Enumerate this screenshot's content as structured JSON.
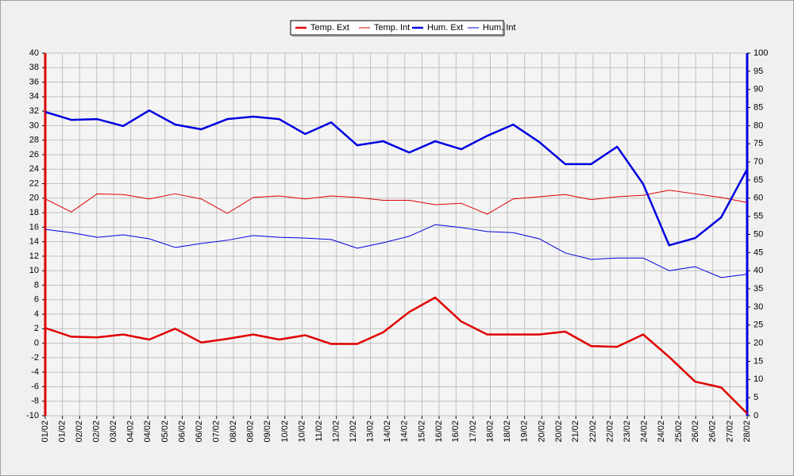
{
  "chart_data": {
    "type": "line",
    "x": [
      1,
      2,
      3,
      4,
      5,
      6,
      7,
      8,
      9,
      10,
      11,
      12,
      13,
      14,
      15,
      16,
      17,
      18,
      19,
      20,
      21,
      22,
      23,
      24,
      25,
      26,
      27,
      28
    ],
    "xlim": [
      1,
      28
    ],
    "xticks": [
      {
        "value": 1,
        "label": "01/02"
      },
      {
        "value": 1.66,
        "label": "01/02"
      },
      {
        "value": 2.32,
        "label": "02/02"
      },
      {
        "value": 2.98,
        "label": "02/02"
      },
      {
        "value": 3.63,
        "label": "03/02"
      },
      {
        "value": 4.29,
        "label": "04/02"
      },
      {
        "value": 4.95,
        "label": "04/02"
      },
      {
        "value": 5.61,
        "label": "05/02"
      },
      {
        "value": 6.27,
        "label": "06/02"
      },
      {
        "value": 6.93,
        "label": "06/02"
      },
      {
        "value": 7.59,
        "label": "07/02"
      },
      {
        "value": 8.24,
        "label": "08/02"
      },
      {
        "value": 8.9,
        "label": "08/02"
      },
      {
        "value": 9.56,
        "label": "09/02"
      },
      {
        "value": 10.22,
        "label": "10/02"
      },
      {
        "value": 10.88,
        "label": "10/02"
      },
      {
        "value": 11.54,
        "label": "11/02"
      },
      {
        "value": 12.2,
        "label": "12/02"
      },
      {
        "value": 12.85,
        "label": "12/02"
      },
      {
        "value": 13.51,
        "label": "13/02"
      },
      {
        "value": 14.17,
        "label": "14/02"
      },
      {
        "value": 14.83,
        "label": "14/02"
      },
      {
        "value": 15.49,
        "label": "15/02"
      },
      {
        "value": 16.15,
        "label": "16/02"
      },
      {
        "value": 16.8,
        "label": "16/02"
      },
      {
        "value": 17.46,
        "label": "17/02"
      },
      {
        "value": 18.12,
        "label": "18/02"
      },
      {
        "value": 18.78,
        "label": "18/02"
      },
      {
        "value": 19.44,
        "label": "19/02"
      },
      {
        "value": 20.1,
        "label": "20/02"
      },
      {
        "value": 20.76,
        "label": "20/02"
      },
      {
        "value": 21.41,
        "label": "21/02"
      },
      {
        "value": 22.07,
        "label": "22/02"
      },
      {
        "value": 22.73,
        "label": "22/02"
      },
      {
        "value": 23.39,
        "label": "23/02"
      },
      {
        "value": 24.05,
        "label": "24/02"
      },
      {
        "value": 24.71,
        "label": "24/02"
      },
      {
        "value": 25.37,
        "label": "25/02"
      },
      {
        "value": 26.02,
        "label": "26/02"
      },
      {
        "value": 26.68,
        "label": "26/02"
      },
      {
        "value": 27.34,
        "label": "27/02"
      },
      {
        "value": 28,
        "label": "28/02"
      }
    ],
    "ylim": [
      -10,
      40
    ],
    "yticks": [
      -10,
      -8,
      -6,
      -4,
      -2,
      0,
      2,
      4,
      6,
      8,
      10,
      12,
      14,
      16,
      18,
      20,
      22,
      24,
      26,
      28,
      30,
      32,
      34,
      36,
      38,
      40
    ],
    "y2lim": [
      0,
      100
    ],
    "y2ticks": [
      0,
      5,
      10,
      15,
      20,
      25,
      30,
      35,
      40,
      45,
      50,
      55,
      60,
      65,
      70,
      75,
      80,
      85,
      90,
      95,
      100
    ],
    "grid": true,
    "legend": "top",
    "series": [
      {
        "name": "Temp. Ext",
        "color": "#e00000",
        "line_width": 2.5,
        "values": [
          2.1,
          0.9,
          0.8,
          1.2,
          0.5,
          2.0,
          0.1,
          0.6,
          1.2,
          0.5,
          1.1,
          -0.1,
          -0.1,
          1.5,
          4.3,
          6.3,
          3.0,
          1.2,
          1.2,
          1.2,
          1.6,
          -0.4,
          -0.5,
          1.2,
          -1.9,
          -5.3,
          -6.1,
          -9.7
        ]
      },
      {
        "name": "Temp. Int",
        "color": "#e00000",
        "line_width": 1,
        "values": [
          19.9,
          18.1,
          20.6,
          20.5,
          19.9,
          20.6,
          19.9,
          17.9,
          20.1,
          20.3,
          19.9,
          20.3,
          20.1,
          19.7,
          19.7,
          19.1,
          19.3,
          17.8,
          19.9,
          20.2,
          20.5,
          19.8,
          20.2,
          20.4,
          21.1,
          20.6,
          20.1,
          19.4
        ]
      },
      {
        "name": "Hum. Ext",
        "color": "#0000e0",
        "line_width": 2.5,
        "axis": "y2",
        "values": [
          83.8,
          81.6,
          81.8,
          79.9,
          84.2,
          80.3,
          79.0,
          81.8,
          82.5,
          81.8,
          77.7,
          80.9,
          74.6,
          75.7,
          72.6,
          75.7,
          73.5,
          77.2,
          80.3,
          75.5,
          69.4,
          69.4,
          74.2,
          63.9,
          47.0,
          49.0,
          54.7,
          68.0
        ]
      },
      {
        "name": "Hum. Int",
        "color": "#0000e0",
        "line_width": 1,
        "axis": "y2",
        "values": [
          51.4,
          50.5,
          49.2,
          49.9,
          48.8,
          46.4,
          47.5,
          48.4,
          49.7,
          49.2,
          49.0,
          48.6,
          46.2,
          47.7,
          49.5,
          52.7,
          51.9,
          50.8,
          50.5,
          48.8,
          44.9,
          43.1,
          43.5,
          43.5,
          40.0,
          41.1,
          38.1,
          39.0
        ]
      }
    ]
  }
}
